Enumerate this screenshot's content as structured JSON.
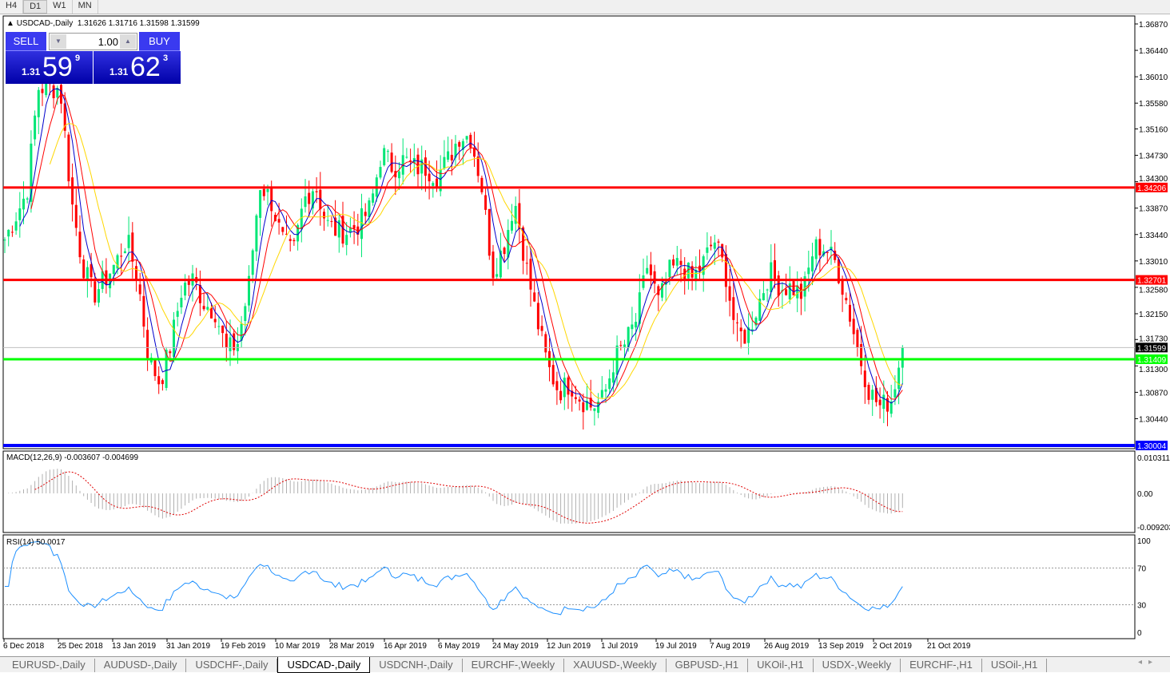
{
  "timeframes": [
    "H4",
    "D1",
    "W1",
    "MN"
  ],
  "active_timeframe": "D1",
  "chart_title": "USDCAD-,Daily",
  "ohlc": "1.31626 1.31716 1.31598 1.31599",
  "trade_panel": {
    "sell_label": "SELL",
    "buy_label": "BUY",
    "lot": "1.00",
    "sell_prefix": "1.31",
    "sell_big": "59",
    "sell_sup": "9",
    "buy_prefix": "1.31",
    "buy_big": "62",
    "buy_sup": "3"
  },
  "macd_label": "MACD(12,26,9) -0.003607 -0.004699",
  "rsi_label": "RSI(14) 50.0017",
  "tabs": [
    "EURUSD-,Daily",
    "AUDUSD-,Daily",
    "USDCHF-,Daily",
    "USDCAD-,Daily",
    "USDCNH-,Daily",
    "EURCHF-,Weekly",
    "XAUUSD-,Weekly",
    "GBPUSD-,H1",
    "UKOil-,H1",
    "USDX-,Weekly",
    "EURCHF-,H1",
    "USOil-,H1"
  ],
  "active_tab": "USDCAD-,Daily",
  "colors": {
    "up": "#00e676",
    "down": "#ff0000",
    "ma_fast": "#0000cc",
    "ma_mid": "#ff0000",
    "ma_slow": "#ffd700",
    "level_red": "#ff0000",
    "level_green": "#00ff00",
    "level_blue": "#0000ff",
    "rsi": "#1e90ff"
  },
  "chart_data": {
    "type": "candlestick",
    "symbol": "USDCAD-",
    "timeframe": "Daily",
    "price_ticks": [
      "1.36870",
      "1.36440",
      "1.36010",
      "1.35580",
      "1.35160",
      "1.34730",
      "1.34300",
      "1.33870",
      "1.33440",
      "1.33010",
      "1.32580",
      "1.32150",
      "1.31730",
      "1.31300",
      "1.30870",
      "1.30440"
    ],
    "price_range": [
      1.299,
      1.37
    ],
    "levels": [
      {
        "price": "1.34206",
        "color": "red"
      },
      {
        "price": "1.32701",
        "color": "red"
      },
      {
        "price": "1.31409",
        "color": "green"
      },
      {
        "price": "1.30004",
        "color": "blue"
      }
    ],
    "current_price": "1.31599",
    "date_ticks": [
      "6 Dec 2018",
      "25 Dec 2018",
      "13 Jan 2019",
      "31 Jan 2019",
      "19 Feb 2019",
      "10 Mar 2019",
      "28 Mar 2019",
      "16 Apr 2019",
      "6 May 2019",
      "24 May 2019",
      "12 Jun 2019",
      "1 Jul 2019",
      "19 Jul 2019",
      "7 Aug 2019",
      "26 Aug 2019",
      "13 Sep 2019",
      "2 Oct 2019",
      "21 Oct 2019"
    ],
    "approx_closes": [
      1.3336,
      1.3375,
      1.3414,
      1.3583,
      1.3583,
      1.3583,
      1.3401,
      1.3297,
      1.3245,
      1.3271,
      1.3297,
      1.3336,
      1.3271,
      1.3141,
      1.3102,
      1.3167,
      1.3258,
      1.3271,
      1.3232,
      1.3219,
      1.3154,
      1.3167,
      1.3258,
      1.3427,
      1.3401,
      1.3336,
      1.331,
      1.3401,
      1.3427,
      1.3362,
      1.3349,
      1.3349,
      1.3362,
      1.3388,
      1.3479,
      1.3453,
      1.3466,
      1.3453,
      1.3453,
      1.344,
      1.3466,
      1.3505,
      1.3505,
      1.3427,
      1.3284,
      1.3323,
      1.3401,
      1.3297,
      1.3206,
      1.3128,
      1.3089,
      1.3102,
      1.3076,
      1.3063,
      1.3076,
      1.3141,
      1.3167,
      1.3206,
      1.3297,
      1.3232,
      1.3284,
      1.3297,
      1.3271,
      1.3297,
      1.3336,
      1.3284,
      1.318,
      1.318,
      1.3232,
      1.3284,
      1.3258,
      1.3258,
      1.3245,
      1.3323,
      1.3323,
      1.3297,
      1.3232,
      1.3154,
      1.3089,
      1.3063,
      1.3076,
      1.316
    ],
    "moving_averages": [
      "fast",
      "mid",
      "slow"
    ],
    "macd": {
      "params": "12,26,9",
      "ticks": [
        "0.010311",
        "0.00",
        "-0.009203"
      ],
      "range": [
        -0.009203,
        0.010311
      ]
    },
    "rsi": {
      "period": 14,
      "ticks": [
        "100",
        "70",
        "30",
        "0"
      ],
      "levels": [
        70,
        30
      ],
      "range": [
        0,
        100
      ]
    }
  }
}
